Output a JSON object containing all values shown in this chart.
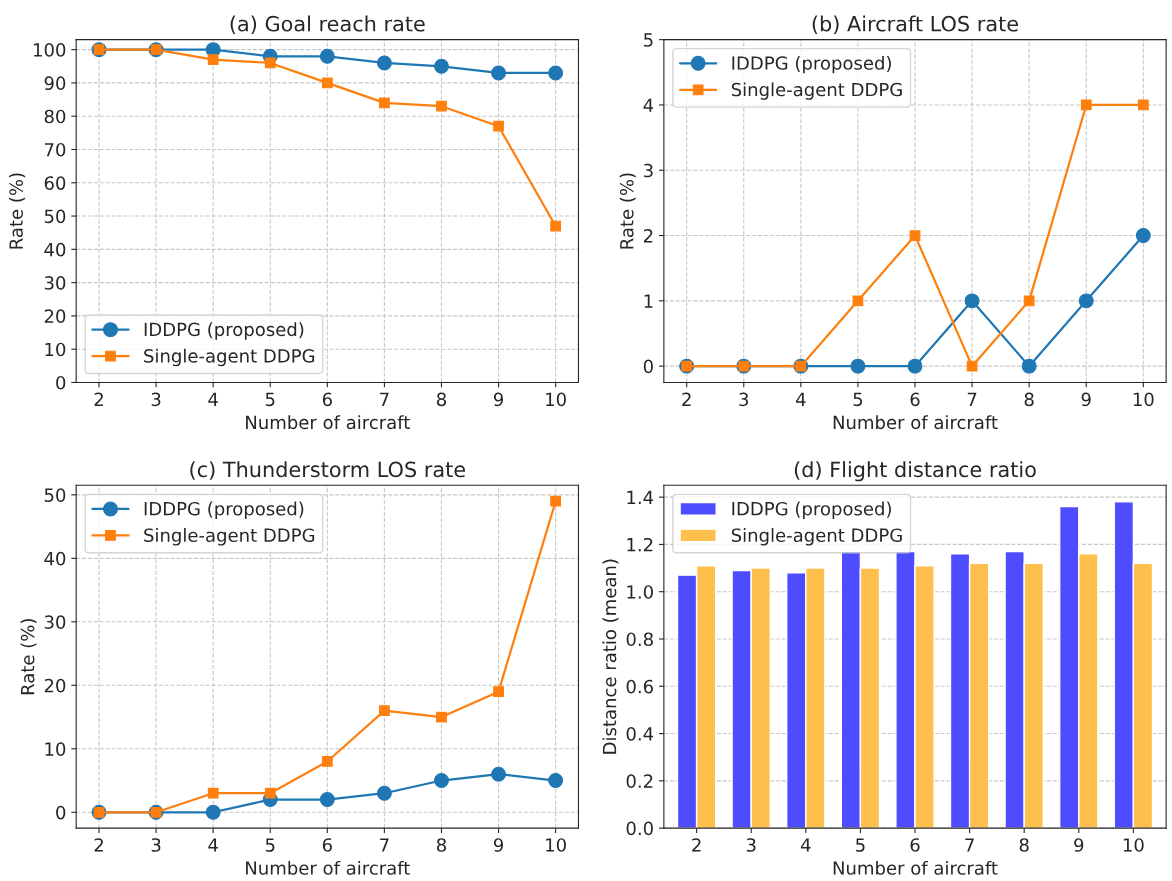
{
  "chart_data": [
    {
      "type": "line",
      "title": "(a) Goal reach rate",
      "xlabel": "Number of aircraft",
      "ylabel": "Rate (%)",
      "x": [
        2,
        3,
        4,
        5,
        6,
        7,
        8,
        9,
        10
      ],
      "xlim": [
        1.6,
        10.4
      ],
      "xticks": [
        2,
        3,
        4,
        5,
        6,
        7,
        8,
        9,
        10
      ],
      "ylim": [
        0,
        103
      ],
      "yticks": [
        0,
        10,
        20,
        30,
        40,
        50,
        60,
        70,
        80,
        90,
        100
      ],
      "grid": true,
      "legend": "bottom left",
      "series": [
        {
          "name": "IDDPG (proposed)",
          "color": "#1f77b4",
          "marker": "circle",
          "values": [
            100,
            100,
            100,
            98,
            98,
            96,
            95,
            93,
            93
          ]
        },
        {
          "name": "Single-agent DDPG",
          "color": "#ff7f0e",
          "marker": "square",
          "values": [
            100,
            100,
            97,
            96,
            90,
            84,
            83,
            77,
            47
          ]
        }
      ]
    },
    {
      "type": "line",
      "title": "(b) Aircraft LOS rate",
      "xlabel": "Number of aircraft",
      "ylabel": "Rate (%)",
      "x": [
        2,
        3,
        4,
        5,
        6,
        7,
        8,
        9,
        10
      ],
      "xlim": [
        1.6,
        10.4
      ],
      "xticks": [
        2,
        3,
        4,
        5,
        6,
        7,
        8,
        9,
        10
      ],
      "ylim": [
        -0.25,
        5
      ],
      "yticks": [
        0,
        1,
        2,
        3,
        4,
        5
      ],
      "grid": true,
      "legend": "top left",
      "series": [
        {
          "name": "IDDPG (proposed)",
          "color": "#1f77b4",
          "marker": "circle",
          "values": [
            0,
            0,
            0,
            0,
            0,
            1,
            0,
            1,
            2
          ]
        },
        {
          "name": "Single-agent DDPG",
          "color": "#ff7f0e",
          "marker": "square",
          "values": [
            0,
            0,
            0,
            1,
            2,
            0,
            1,
            4,
            4
          ]
        }
      ]
    },
    {
      "type": "line",
      "title": "(c) Thunderstorm LOS rate",
      "xlabel": "Number of aircraft",
      "ylabel": "Rate (%)",
      "x": [
        2,
        3,
        4,
        5,
        6,
        7,
        8,
        9,
        10
      ],
      "xlim": [
        1.6,
        10.4
      ],
      "xticks": [
        2,
        3,
        4,
        5,
        6,
        7,
        8,
        9,
        10
      ],
      "ylim": [
        -2.5,
        51.5
      ],
      "yticks": [
        0,
        10,
        20,
        30,
        40,
        50
      ],
      "grid": true,
      "legend": "top left",
      "series": [
        {
          "name": "IDDPG (proposed)",
          "color": "#1f77b4",
          "marker": "circle",
          "values": [
            0,
            0,
            0,
            2,
            2,
            3,
            5,
            6,
            5
          ]
        },
        {
          "name": "Single-agent DDPG",
          "color": "#ff7f0e",
          "marker": "square",
          "values": [
            0,
            0,
            3,
            3,
            8,
            16,
            15,
            19,
            49
          ]
        }
      ]
    },
    {
      "type": "bar",
      "title": "(d) Flight distance ratio",
      "xlabel": "Number of aircraft",
      "ylabel": "Distance ratio (mean)",
      "categories": [
        "2",
        "3",
        "4",
        "5",
        "6",
        "7",
        "8",
        "9",
        "10"
      ],
      "ylim": [
        0,
        1.45
      ],
      "yticks": [
        {
          "value": 0,
          "label": "0.0"
        },
        {
          "value": 0.2,
          "label": "0.2"
        },
        {
          "value": 0.4,
          "label": "0.4"
        },
        {
          "value": 0.6,
          "label": "0.6"
        },
        {
          "value": 0.8,
          "label": "0.8"
        },
        {
          "value": 1.0,
          "label": "1.0"
        },
        {
          "value": 1.2,
          "label": "1.2"
        },
        {
          "value": 1.4,
          "label": "1.4"
        }
      ],
      "grid": "y",
      "legend": "top left",
      "series": [
        {
          "name": "IDDPG (proposed)",
          "color": "#4d4dff",
          "values": [
            1.07,
            1.09,
            1.08,
            1.17,
            1.17,
            1.16,
            1.17,
            1.36,
            1.38
          ]
        },
        {
          "name": "Single-agent DDPG",
          "color": "#ffbf4d",
          "values": [
            1.11,
            1.1,
            1.1,
            1.1,
            1.11,
            1.12,
            1.12,
            1.16,
            1.12
          ]
        }
      ]
    }
  ]
}
